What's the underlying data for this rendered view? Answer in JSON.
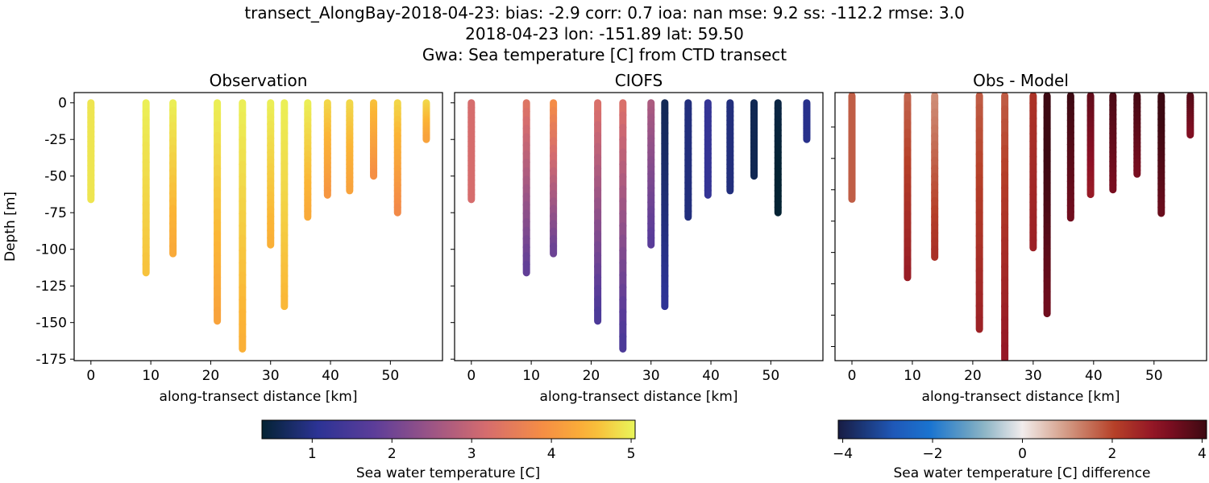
{
  "title_lines": [
    "transect_AlongBay-2018-04-23: bias: -2.9  corr: 0.7  ioa: nan  mse: 9.2  ss: -112.2  rmse: 3.0",
    "2018-04-23 lon: -151.89 lat: 59.50",
    "Gwa: Sea temperature [C] from CTD transect"
  ],
  "chart_data": [
    {
      "type": "scatter",
      "title": "Observation",
      "xlabel": "along-transect distance [km]",
      "ylabel": "Depth [m]",
      "xlim": [
        -2.8,
        58.7
      ],
      "ylim": [
        -176,
        7
      ],
      "xticks": [
        0,
        10,
        20,
        30,
        40,
        50
      ],
      "yticks": [
        0,
        -25,
        -50,
        -75,
        -100,
        -125,
        -150,
        -175
      ],
      "grid": false,
      "field": "obs",
      "colormap": "thermal"
    },
    {
      "type": "scatter",
      "title": "CIOFS",
      "xlabel": "along-transect distance [km]",
      "ylabel": "",
      "xlim": [
        -2.8,
        58.7
      ],
      "ylim": [
        -176,
        7
      ],
      "xticks": [
        0,
        10,
        20,
        30,
        40,
        50
      ],
      "yticks": [
        0,
        -25,
        -50,
        -75,
        -100,
        -125,
        -150,
        -175
      ],
      "grid": false,
      "field": "model",
      "colormap": "thermal"
    },
    {
      "type": "scatter",
      "title": "Obs - Model",
      "xlabel": "along-transect distance [km]",
      "ylabel": "",
      "xlim": [
        -2.8,
        58.7
      ],
      "ylim": [
        -169,
        2
      ],
      "xticks": [
        0,
        10,
        20,
        30,
        40,
        50
      ],
      "yticks": [
        -20,
        -40,
        -60,
        -80,
        -100,
        -120,
        -140,
        -160
      ],
      "grid": false,
      "field": "diff",
      "colormap": "balance"
    }
  ],
  "casts": [
    {
      "x": 0,
      "depth": -66,
      "obs": [
        4.9,
        4.9
      ],
      "model": [
        3.2,
        3.2
      ]
    },
    {
      "x": 9.2,
      "depth": -116,
      "obs": [
        5.0,
        4.6
      ],
      "model": [
        3.4,
        1.8
      ]
    },
    {
      "x": 13.7,
      "depth": -103,
      "obs": [
        5.0,
        4.3
      ],
      "model": [
        3.9,
        1.9
      ]
    },
    {
      "x": 21.1,
      "depth": -149,
      "obs": [
        5.0,
        4.2
      ],
      "model": [
        3.3,
        1.5
      ]
    },
    {
      "x": 25.3,
      "depth": -168,
      "obs": [
        5.0,
        4.4
      ],
      "model": [
        3.3,
        1.5
      ]
    },
    {
      "x": 30.0,
      "depth": -97,
      "obs": [
        5.0,
        4.4
      ],
      "model": [
        2.7,
        1.7
      ]
    },
    {
      "x": 32.3,
      "depth": -139,
      "obs": [
        5.0,
        4.5
      ],
      "model": [
        0.6,
        1.1
      ]
    },
    {
      "x": 36.2,
      "depth": -78,
      "obs": [
        5.0,
        4.3
      ],
      "model": [
        0.9,
        0.9
      ]
    },
    {
      "x": 39.5,
      "depth": -63,
      "obs": [
        4.8,
        4.0
      ],
      "model": [
        1.2,
        1.2
      ]
    },
    {
      "x": 43.2,
      "depth": -60,
      "obs": [
        4.8,
        4.2
      ],
      "model": [
        0.9,
        0.9
      ]
    },
    {
      "x": 47.2,
      "depth": -50,
      "obs": [
        4.6,
        3.9
      ],
      "model": [
        0.6,
        0.6
      ]
    },
    {
      "x": 51.2,
      "depth": -75,
      "obs": [
        4.8,
        3.8
      ],
      "model": [
        0.5,
        0.3
      ]
    },
    {
      "x": 56.0,
      "depth": -25,
      "obs": [
        4.8,
        4.2
      ],
      "model": [
        1.0,
        1.0
      ]
    }
  ],
  "colorbars": [
    {
      "label": "Sea water temperature [C]",
      "range": [
        0.37,
        5.05
      ],
      "ticks": [
        1,
        2,
        3,
        4,
        5
      ],
      "colormap": "thermal"
    },
    {
      "label": "Sea water temperature [C] difference",
      "range": [
        -4.1,
        4.1
      ],
      "ticks": [
        -4,
        -2,
        0,
        2,
        4
      ],
      "tick_labels": [
        "−4",
        "−2",
        "0",
        "2",
        "4"
      ],
      "colormap": "balance"
    }
  ]
}
